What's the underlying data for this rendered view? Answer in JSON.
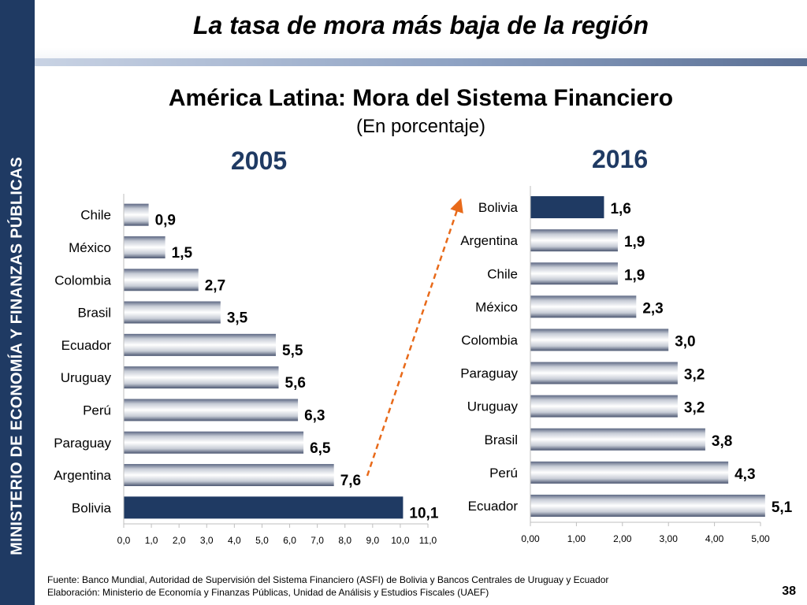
{
  "sidebar": {
    "text": "MINISTERIO DE ECONOMÍA Y FINANZAS PÚBLICAS"
  },
  "slide_title": "La tasa de mora más baja de la región",
  "main_title": "América Latina: Mora del Sistema Financiero",
  "main_subtitle": "(En porcentaje)",
  "footer": {
    "source": "Fuente: Banco Mundial, Autoridad de Supervisión del Sistema Financiero (ASFI) de Bolivia y Bancos Centrales de Uruguay y Ecuador",
    "elaboration": "Elaboración: Ministerio de Economía y Finanzas Públicas, Unidad de Análisis y Estudios Fiscales (UAEF)"
  },
  "page_number": "38",
  "colors": {
    "sidebar": "#1f3a63",
    "highlight_bar": "#1f3a63",
    "year_label": "#1f3a63",
    "arrow": "#e86a1a"
  },
  "chart_data": [
    {
      "type": "bar",
      "orientation": "horizontal",
      "title": "2005",
      "categories": [
        "Chile",
        "México",
        "Colombia",
        "Brasil",
        "Ecuador",
        "Uruguay",
        "Perú",
        "Paraguay",
        "Argentina",
        "Bolivia"
      ],
      "values": [
        0.9,
        1.5,
        2.7,
        3.5,
        5.5,
        5.6,
        6.3,
        6.5,
        7.6,
        10.1
      ],
      "value_labels": [
        "0,9",
        "1,5",
        "2,7",
        "3,5",
        "5,5",
        "5,6",
        "6,3",
        "6,5",
        "7,6",
        "10,1"
      ],
      "highlight": "Bolivia",
      "xlim": [
        0,
        11
      ],
      "ticks": [
        "0,0",
        "1,0",
        "2,0",
        "3,0",
        "4,0",
        "5,0",
        "6,0",
        "7,0",
        "8,0",
        "9,0",
        "10,0",
        "11,0"
      ],
      "grid": false,
      "legend": false
    },
    {
      "type": "bar",
      "orientation": "horizontal",
      "title": "2016",
      "categories": [
        "Bolivia",
        "Argentina",
        "Chile",
        "México",
        "Colombia",
        "Paraguay",
        "Uruguay",
        "Brasil",
        "Perú",
        "Ecuador"
      ],
      "values": [
        1.6,
        1.9,
        1.9,
        2.3,
        3.0,
        3.2,
        3.2,
        3.8,
        4.3,
        5.1
      ],
      "value_labels": [
        "1,6",
        "1,9",
        "1,9",
        "2,3",
        "3,0",
        "3,2",
        "3,2",
        "3,8",
        "4,3",
        "5,1"
      ],
      "highlight": "Bolivia",
      "xlim": [
        0,
        5
      ],
      "ticks": [
        "0,00",
        "1,00",
        "2,00",
        "3,00",
        "4,00",
        "5,00"
      ],
      "grid": false,
      "legend": false
    }
  ]
}
